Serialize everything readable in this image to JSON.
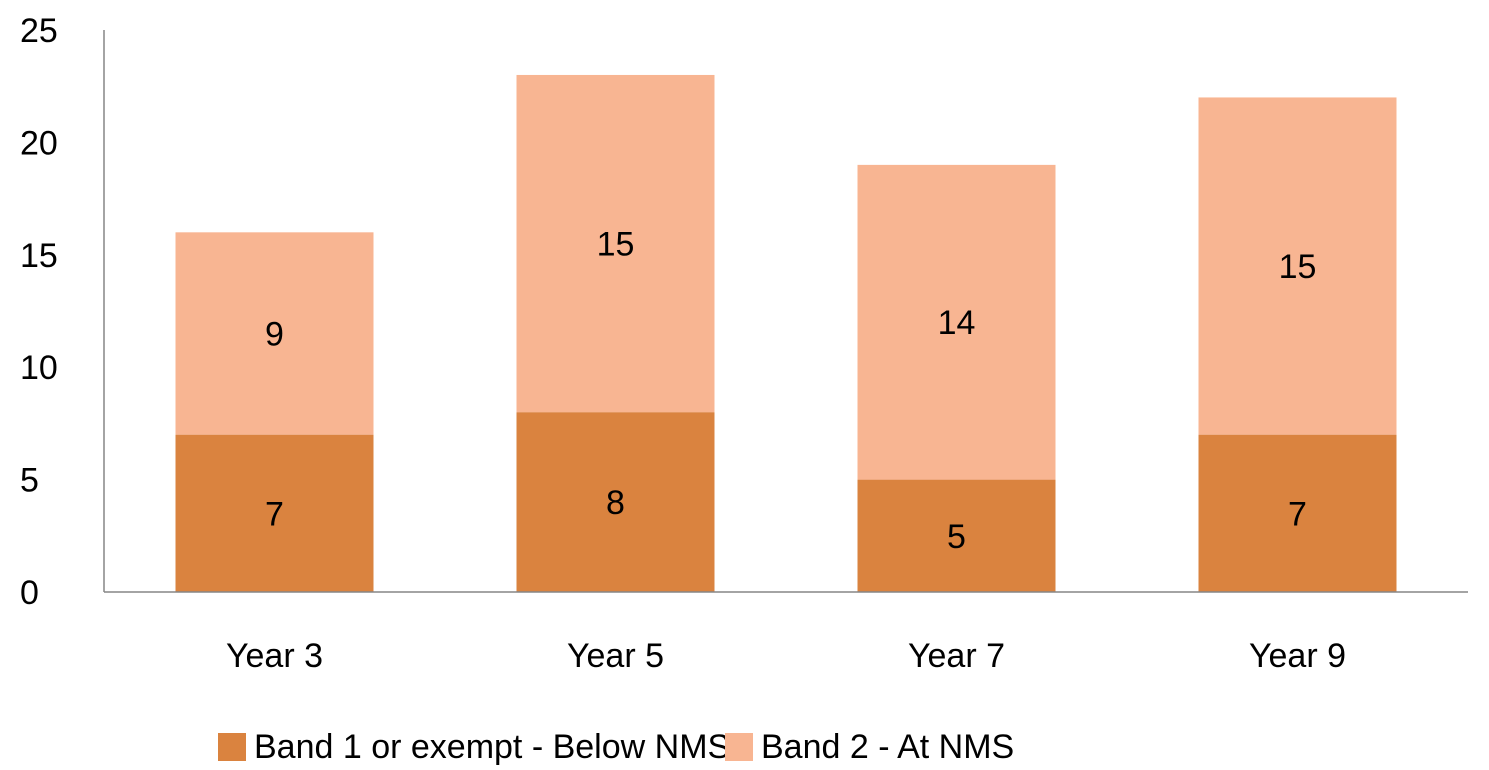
{
  "chart_data": {
    "type": "bar",
    "stacked": true,
    "categories": [
      "Year 3",
      "Year 5",
      "Year 7",
      "Year 9"
    ],
    "series": [
      {
        "name": "Band 1 or exempt - Below NMS",
        "values": [
          7,
          8,
          5,
          7
        ],
        "color": "#DA833F"
      },
      {
        "name": "Band 2 - At NMS",
        "values": [
          9,
          15,
          14,
          15
        ],
        "color": "#F8B592"
      }
    ],
    "data_labels": true,
    "ylim": [
      0,
      25
    ],
    "yticks": [
      0,
      5,
      10,
      15,
      20,
      25
    ],
    "grid": false,
    "legend_position": "bottom",
    "title": "",
    "xlabel": "",
    "ylabel": ""
  }
}
